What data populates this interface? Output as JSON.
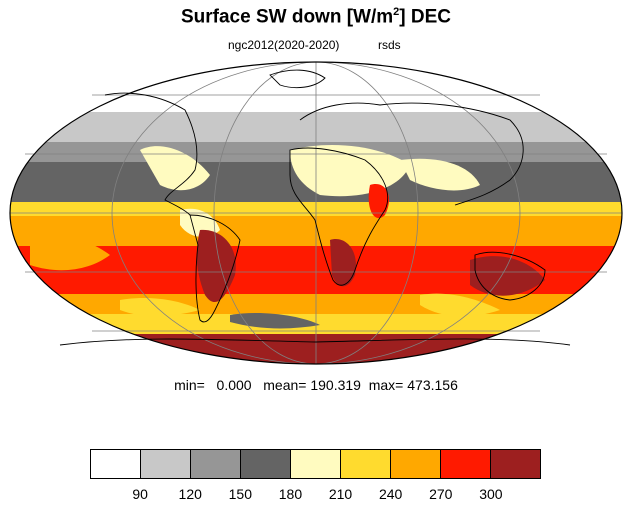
{
  "title": {
    "main": "Surface SW down [W/m",
    "sup": "2",
    "suffix": "]  DEC"
  },
  "subtitle_left": "ngc2012(2020-2020)",
  "subtitle_right": "rsds",
  "stats": {
    "min_label": "min=",
    "min": "0.000",
    "mean_label": "mean=",
    "mean": "190.319",
    "max_label": "max=",
    "max": "473.156"
  },
  "legend": {
    "colors": [
      "#ffffff",
      "#c8c8c8",
      "#969696",
      "#646464",
      "#fffbc0",
      "#ffdb2e",
      "#ffa800",
      "#ff1a00",
      "#9d1f1f"
    ],
    "ticks": [
      "90",
      "120",
      "150",
      "180",
      "210",
      "240",
      "270",
      "300"
    ]
  },
  "map": {
    "projection": "mollweide",
    "bands_colors": {
      "polar_north": "#ffffff",
      "light_gray": "#c8c8c8",
      "mid_gray": "#969696",
      "dark_gray": "#646464",
      "pale_yellow": "#fffbc0",
      "yellow": "#ffdb2e",
      "orange": "#ffa800",
      "red": "#ff1a00",
      "dark_red": "#9d1f1f"
    }
  }
}
